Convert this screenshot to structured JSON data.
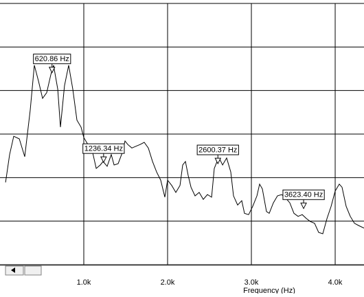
{
  "chart_data": {
    "type": "line",
    "xlabel": "Frequency (Hz)",
    "color": "#000000",
    "grid": true,
    "xlim": [
      0,
      4344
    ],
    "ylim": [
      0,
      6
    ],
    "xticks": [
      {
        "value": 1000,
        "label": "1.0k"
      },
      {
        "value": 2000,
        "label": "2.0k"
      },
      {
        "value": 3000,
        "label": "3.0k"
      },
      {
        "value": 4000,
        "label": "4.0k"
      }
    ],
    "ygrid": [
      0,
      1,
      2,
      3,
      4,
      5,
      6
    ],
    "x": [
      66,
      115,
      164,
      230,
      295,
      361,
      410,
      459,
      508,
      557,
      607,
      639,
      689,
      721,
      770,
      820,
      869,
      918,
      967,
      1000,
      1049,
      1098,
      1148,
      1197,
      1230,
      1279,
      1328,
      1361,
      1410,
      1459,
      1492,
      1525,
      1574,
      1623,
      1672,
      1721,
      1770,
      1820,
      1869,
      1918,
      1967,
      2000,
      2049,
      2098,
      2148,
      2180,
      2213,
      2246,
      2279,
      2328,
      2377,
      2426,
      2475,
      2525,
      2557,
      2590,
      2623,
      2656,
      2705,
      2754,
      2787,
      2836,
      2885,
      2918,
      2967,
      3016,
      3066,
      3098,
      3131,
      3180,
      3213,
      3262,
      3311,
      3361,
      3410,
      3459,
      3508,
      3557,
      3607,
      3656,
      3705,
      3754,
      3803,
      3852,
      3902,
      3951,
      4000,
      4049,
      4082,
      4131,
      4180,
      4230,
      4279,
      4344
    ],
    "values": [
      1.89,
      2.53,
      2.95,
      2.89,
      2.48,
      3.55,
      4.58,
      4.22,
      3.82,
      3.95,
      4.37,
      4.58,
      4.03,
      3.16,
      4.11,
      4.58,
      4.03,
      3.32,
      3.16,
      2.92,
      2.76,
      2.64,
      2.21,
      2.29,
      2.37,
      2.26,
      2.53,
      2.29,
      2.32,
      2.57,
      2.84,
      2.76,
      2.68,
      2.72,
      2.76,
      2.81,
      2.68,
      2.37,
      2.13,
      1.94,
      1.55,
      1.94,
      1.82,
      1.66,
      1.82,
      2.29,
      2.37,
      2.05,
      1.78,
      1.58,
      1.66,
      1.5,
      1.61,
      1.55,
      2.21,
      2.37,
      2.42,
      2.29,
      2.45,
      2.13,
      1.58,
      1.37,
      1.47,
      1.18,
      1.15,
      1.34,
      1.58,
      1.85,
      1.74,
      1.22,
      1.18,
      1.42,
      1.58,
      1.61,
      1.53,
      1.42,
      1.18,
      1.11,
      1.15,
      1.06,
      0.99,
      0.95,
      0.74,
      0.71,
      1.06,
      1.34,
      1.69,
      1.85,
      1.78,
      1.34,
      1.11,
      0.95,
      0.9,
      0.84
    ],
    "annotations": [
      {
        "label": "620.86 Hz",
        "x": 620.86,
        "y": 4.41
      },
      {
        "label": "1236.34 Hz",
        "x": 1236.34,
        "y": 2.35
      },
      {
        "label": "2600.37 Hz",
        "x": 2600.37,
        "y": 2.32
      },
      {
        "label": "3623.40 Hz",
        "x": 3623.4,
        "y": 1.29
      }
    ]
  }
}
